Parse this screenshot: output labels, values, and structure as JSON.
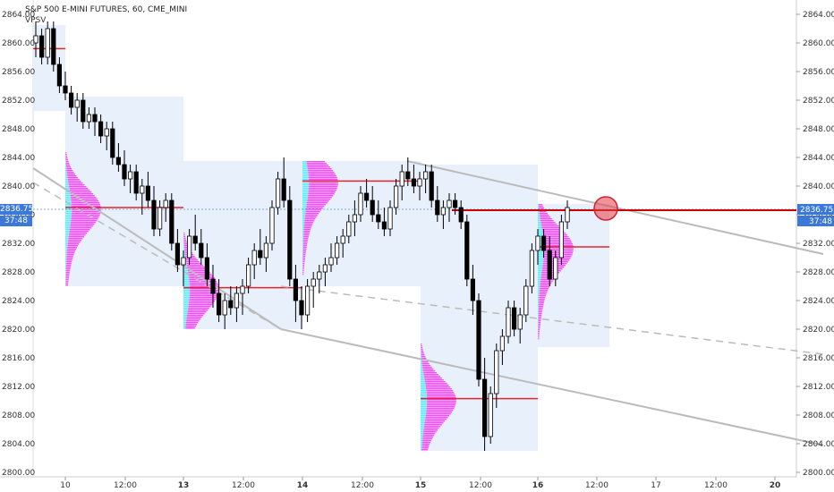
{
  "header": {
    "symbol_line": "S&P 500 E-MINI FUTURES, 60, CME_MINI",
    "indicator": "VPSV"
  },
  "price_tags": {
    "price": "2836.75",
    "countdown": "37:48"
  },
  "colors": {
    "up_candle": "#ffffff",
    "down_candle": "#000000",
    "poc_line": "#e8232b",
    "profile_up": "#ff44ff",
    "profile_down": "#55eeff",
    "profile_bg": "#e8f0fb",
    "trend_line": "#bbbbbb",
    "price_line": "#cc0000",
    "tag_bg": "#3b78d8"
  },
  "chart_data": {
    "type": "candlestick",
    "title": "S&P 500 E-MINI FUTURES, 60, CME_MINI",
    "y_axis": {
      "min": 2800,
      "max": 2866,
      "ticks": [
        "2864.00",
        "2860.00",
        "2856.00",
        "2852.00",
        "2848.00",
        "2844.00",
        "2840.00",
        "2836.00",
        "2832.00",
        "2828.00",
        "2824.00",
        "2820.00",
        "2816.00",
        "2812.00",
        "2808.00",
        "2804.00",
        "2800.00"
      ]
    },
    "x_axis": {
      "labels": [
        "10",
        "12:00",
        "13",
        "12:00",
        "14",
        "12:00",
        "15",
        "12:00",
        "16",
        "12:00",
        "17",
        "12:00",
        "20"
      ],
      "bold": [
        "13",
        "14",
        "15",
        "16",
        "20"
      ]
    },
    "current_price": 2836.75,
    "sessions": [
      {
        "day": "9",
        "top": 2862.5,
        "bottom": 2850.5,
        "poc": 2859.2
      },
      {
        "day": "10",
        "top": 2852.5,
        "bottom": 2826.0,
        "poc": 2837.0
      },
      {
        "day": "13",
        "top": 2843.5,
        "bottom": 2820.0,
        "poc": 2825.8
      },
      {
        "day": "14",
        "top": 2843.5,
        "bottom": 2826.0,
        "poc": 2840.7
      },
      {
        "day": "15",
        "top": 2843.0,
        "bottom": 2803.0,
        "poc": 2810.3
      },
      {
        "day": "16",
        "top": 2837.5,
        "bottom": 2817.5,
        "poc": 2831.5
      }
    ],
    "candles": [
      [
        2860,
        2863,
        2858,
        2861
      ],
      [
        2861,
        2862,
        2857,
        2858
      ],
      [
        2858,
        2863,
        2857,
        2862
      ],
      [
        2862,
        2863,
        2856,
        2857
      ],
      [
        2857,
        2858,
        2853,
        2854
      ],
      [
        2854,
        2856,
        2852,
        2853
      ],
      [
        2853,
        2854,
        2850,
        2851
      ],
      [
        2851,
        2853,
        2849,
        2852
      ],
      [
        2852,
        2853,
        2848,
        2849
      ],
      [
        2849,
        2851,
        2848,
        2850
      ],
      [
        2850,
        2851,
        2847,
        2849
      ],
      [
        2849,
        2850,
        2846,
        2847
      ],
      [
        2847,
        2849,
        2845,
        2848
      ],
      [
        2848,
        2849,
        2843,
        2844
      ],
      [
        2844,
        2846,
        2842,
        2843
      ],
      [
        2843,
        2845,
        2840,
        2841
      ],
      [
        2841,
        2843,
        2839,
        2842
      ],
      [
        2842,
        2843,
        2838,
        2839
      ],
      [
        2839,
        2841,
        2836,
        2840
      ],
      [
        2840,
        2842,
        2837,
        2838
      ],
      [
        2838,
        2840,
        2833,
        2834
      ],
      [
        2834,
        2838,
        2833,
        2837
      ],
      [
        2837,
        2839,
        2835,
        2838
      ],
      [
        2838,
        2839,
        2831,
        2832
      ],
      [
        2832,
        2834,
        2828,
        2829
      ],
      [
        2829,
        2831,
        2826,
        2830
      ],
      [
        2830,
        2834,
        2829,
        2833
      ],
      [
        2833,
        2836,
        2831,
        2832
      ],
      [
        2832,
        2834,
        2829,
        2830
      ],
      [
        2830,
        2832,
        2826,
        2827
      ],
      [
        2827,
        2829,
        2823,
        2825
      ],
      [
        2825,
        2827,
        2821,
        2822
      ],
      [
        2822,
        2825,
        2820,
        2824
      ],
      [
        2824,
        2826,
        2822,
        2823
      ],
      [
        2823,
        2826,
        2821,
        2825
      ],
      [
        2825,
        2827,
        2822,
        2826
      ],
      [
        2826,
        2830,
        2825,
        2829
      ],
      [
        2829,
        2832,
        2827,
        2831
      ],
      [
        2831,
        2834,
        2829,
        2830
      ],
      [
        2830,
        2833,
        2828,
        2832
      ],
      [
        2832,
        2838,
        2831,
        2837
      ],
      [
        2837,
        2842,
        2836,
        2841
      ],
      [
        2841,
        2844,
        2837,
        2838
      ],
      [
        2838,
        2840,
        2826,
        2827
      ],
      [
        2827,
        2829,
        2821,
        2824
      ],
      [
        2824,
        2826,
        2820,
        2822
      ],
      [
        2822,
        2827,
        2821,
        2826
      ],
      [
        2826,
        2828,
        2823,
        2827
      ],
      [
        2827,
        2829,
        2825,
        2828
      ],
      [
        2828,
        2830,
        2826,
        2829
      ],
      [
        2829,
        2832,
        2828,
        2830
      ],
      [
        2830,
        2833,
        2829,
        2832
      ],
      [
        2832,
        2834,
        2830,
        2833
      ],
      [
        2833,
        2836,
        2832,
        2835
      ],
      [
        2835,
        2838,
        2833,
        2836
      ],
      [
        2836,
        2840,
        2835,
        2839
      ],
      [
        2839,
        2841,
        2837,
        2838
      ],
      [
        2838,
        2840,
        2835,
        2836
      ],
      [
        2836,
        2838,
        2834,
        2835
      ],
      [
        2835,
        2837,
        2833,
        2834
      ],
      [
        2834,
        2838,
        2833,
        2837
      ],
      [
        2837,
        2841,
        2836,
        2840
      ],
      [
        2840,
        2843,
        2838,
        2842
      ],
      [
        2842,
        2844,
        2840,
        2841
      ],
      [
        2841,
        2843,
        2839,
        2840
      ],
      [
        2840,
        2842,
        2838,
        2841
      ],
      [
        2841,
        2843,
        2839,
        2842
      ],
      [
        2842,
        2843,
        2837,
        2838
      ],
      [
        2838,
        2840,
        2835,
        2836
      ],
      [
        2836,
        2838,
        2834,
        2837
      ],
      [
        2837,
        2839,
        2835,
        2838
      ],
      [
        2838,
        2839,
        2836,
        2837
      ],
      [
        2837,
        2838,
        2834,
        2835
      ],
      [
        2835,
        2836,
        2826,
        2827
      ],
      [
        2827,
        2829,
        2822,
        2824
      ],
      [
        2824,
        2825,
        2812,
        2813
      ],
      [
        2813,
        2816,
        2803,
        2805
      ],
      [
        2805,
        2812,
        2804,
        2811
      ],
      [
        2811,
        2818,
        2809,
        2817
      ],
      [
        2817,
        2820,
        2815,
        2819
      ],
      [
        2819,
        2824,
        2818,
        2823
      ],
      [
        2823,
        2824,
        2819,
        2820
      ],
      [
        2820,
        2823,
        2818,
        2822
      ],
      [
        2822,
        2827,
        2821,
        2826
      ],
      [
        2826,
        2832,
        2825,
        2831
      ],
      [
        2831,
        2834,
        2829,
        2833
      ],
      [
        2833,
        2834,
        2830,
        2831
      ],
      [
        2831,
        2833,
        2826,
        2827
      ],
      [
        2827,
        2831,
        2826,
        2830
      ],
      [
        2830,
        2836,
        2829,
        2835
      ],
      [
        2835,
        2838,
        2834,
        2837
      ]
    ],
    "candle_day_index": {
      "10": 5,
      "13": 23,
      "14": 42,
      "15": 61,
      "16": 77
    }
  }
}
